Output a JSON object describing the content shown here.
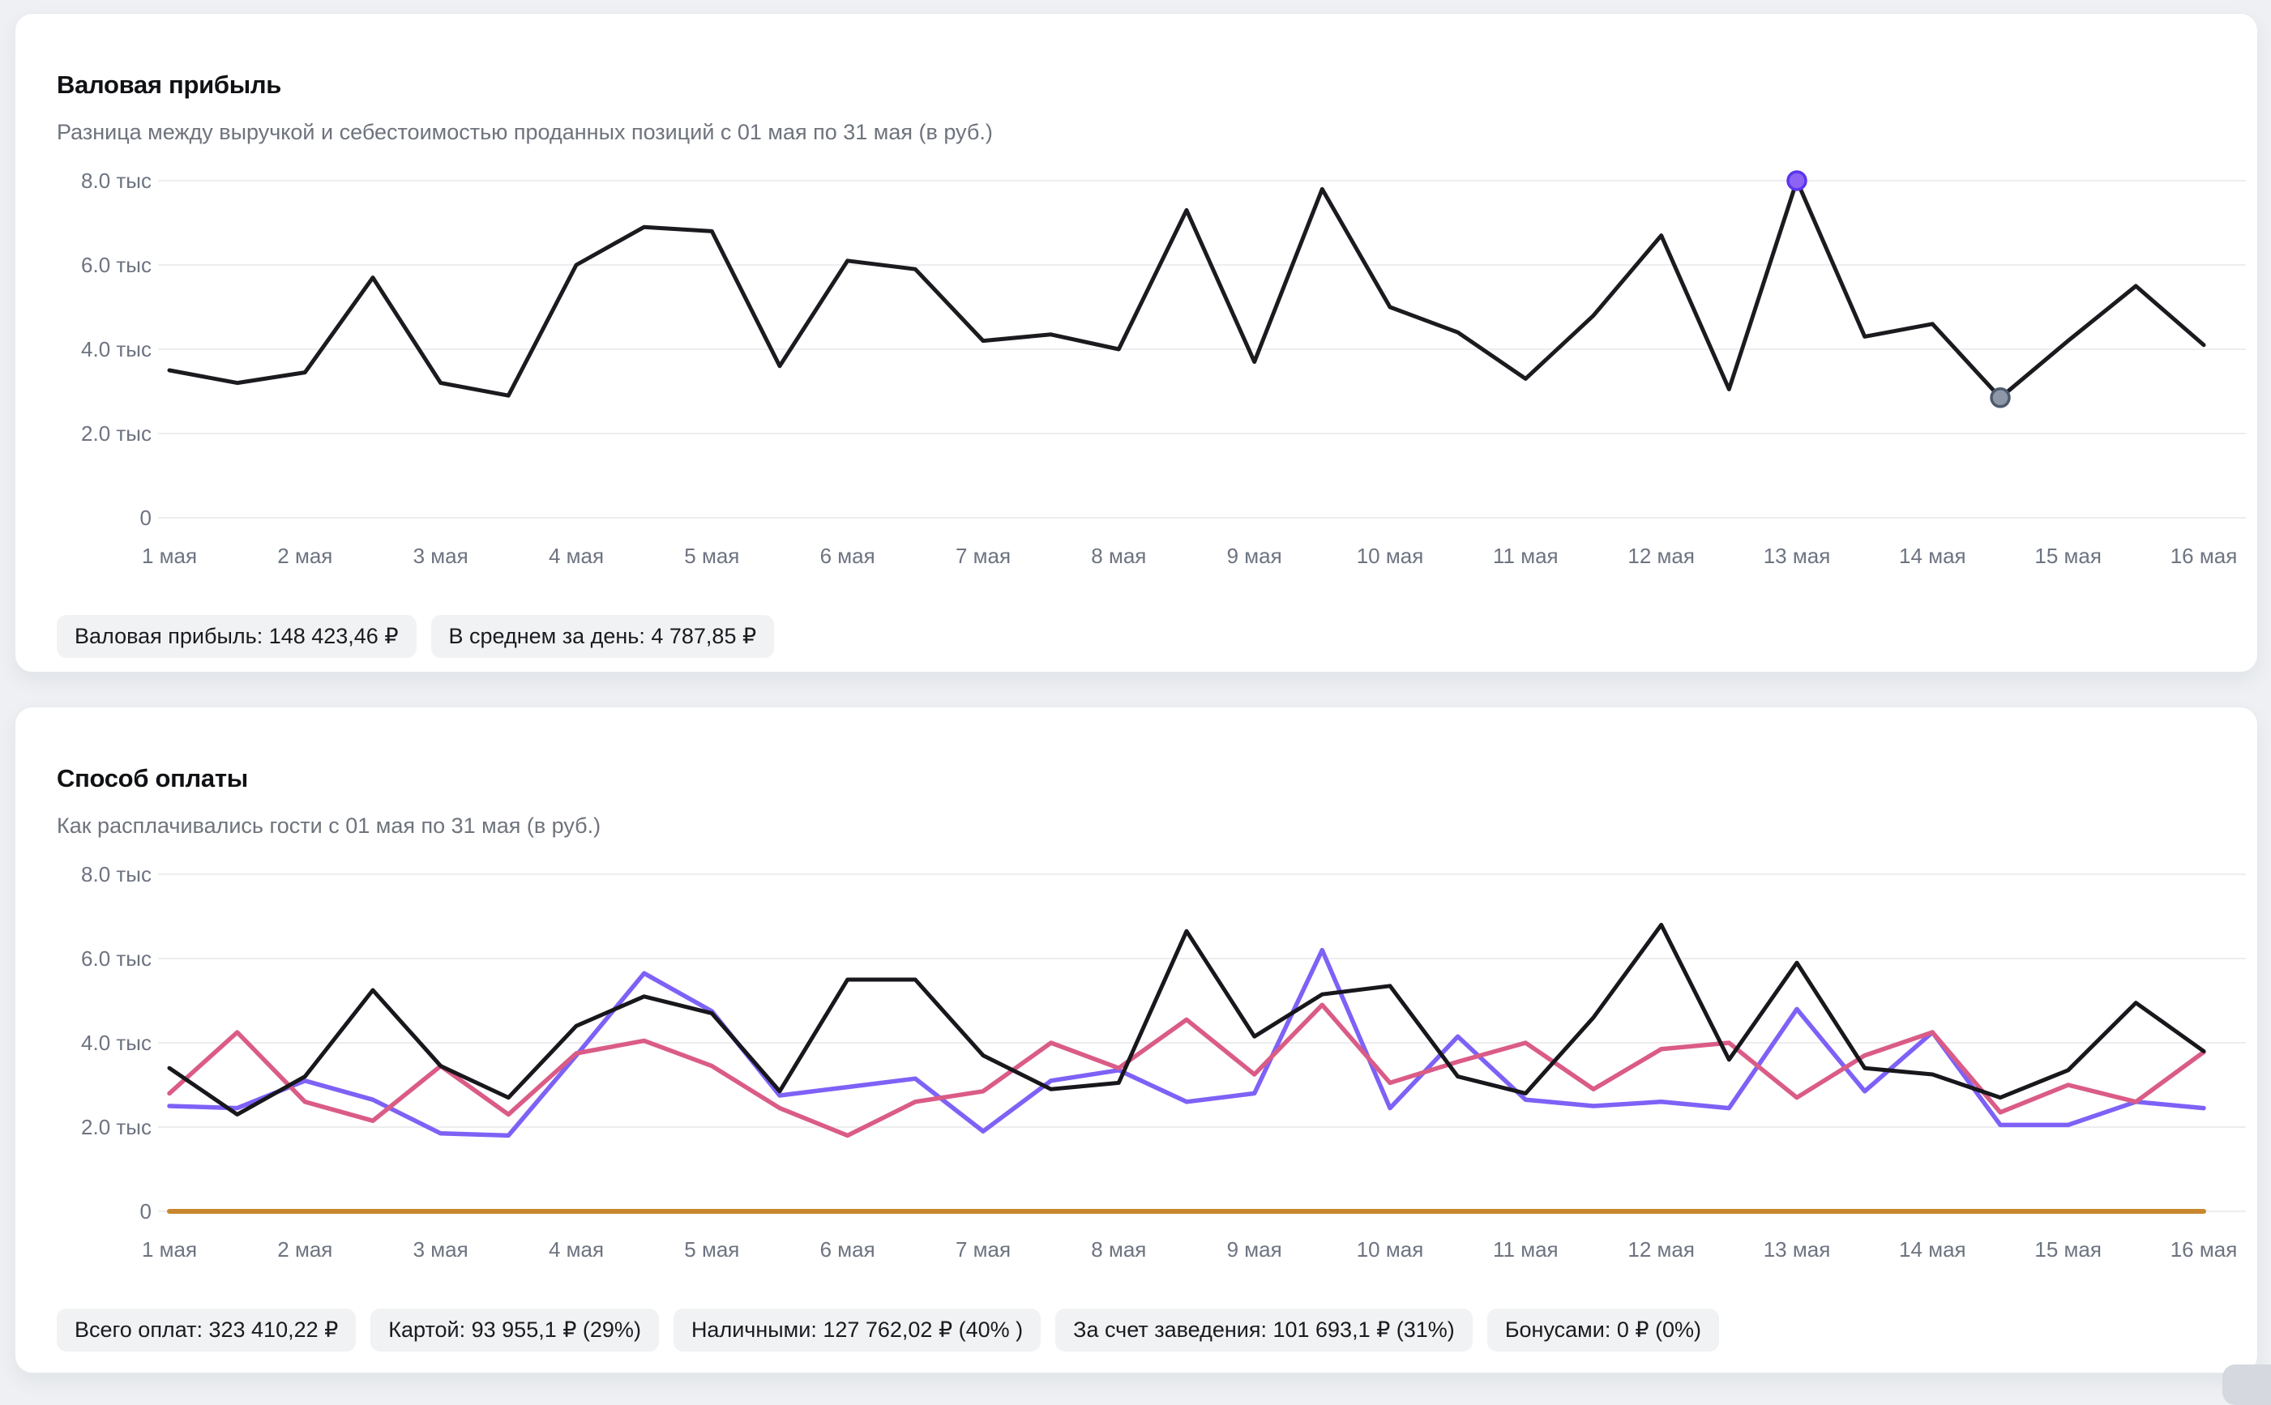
{
  "cards": [
    {
      "title": "Валовая прибыль",
      "subtitle": "Разница между выручкой и себестоимостью проданных позиций с 01 мая по 31 мая (в руб.)",
      "badges": [
        "Валовая прибыль: 148 423,46 ₽",
        "В среднем за день: 4 787,85 ₽"
      ]
    },
    {
      "title": "Способ оплаты",
      "subtitle": "Как расплачивались гости с 01 мая по 31 мая (в руб.)",
      "badges": [
        "Всего оплат: 323 410,22 ₽",
        "Картой: 93 955,1 ₽ (29%)",
        "Наличными: 127 762,02 ₽ (40% )",
        "За счет заведения: 101 693,1 ₽ (31%)",
        "Бонусами: 0 ₽ (0%)"
      ]
    }
  ],
  "chart_data": [
    {
      "type": "line",
      "title": "Валовая прибыль",
      "unit": "тыс",
      "ylim": [
        0,
        8
      ],
      "grid": true,
      "y_ticks": [
        "8.0 тыс",
        "6.0 тыс",
        "4.0 тыс",
        "2.0 тыс",
        "0"
      ],
      "y_tick_values": [
        8,
        6,
        4,
        2,
        0
      ],
      "x_labels": [
        "1 мая",
        "2 мая",
        "3 мая",
        "4 мая",
        "5 мая",
        "6 мая",
        "7 мая",
        "8 мая",
        "9 мая",
        "10 мая",
        "11 мая",
        "12 мая",
        "13 мая",
        "14 мая",
        "15 мая",
        "16 мая"
      ],
      "series": [
        {
          "name": "Валовая прибыль",
          "color": "#1b1b1f",
          "width": 5,
          "values": [
            3.5,
            3.2,
            3.45,
            5.7,
            3.2,
            2.9,
            6.0,
            6.9,
            6.8,
            3.6,
            6.1,
            5.9,
            4.2,
            4.35,
            4.0,
            7.3,
            3.7,
            7.8,
            5.0,
            4.4,
            3.3,
            4.8,
            6.7,
            3.05,
            8.0,
            4.3,
            4.6,
            2.85,
            4.2,
            5.5,
            4.1
          ]
        }
      ],
      "markers": [
        {
          "index": 24,
          "fill": "#8c63f3",
          "ring": "#5c35ee",
          "meaning": "max-point"
        },
        {
          "index": 27,
          "fill": "#8d97a8",
          "ring": "#4e5a6e",
          "meaning": "min-point"
        }
      ]
    },
    {
      "type": "line",
      "title": "Способ оплаты",
      "unit": "тыс",
      "ylim": [
        0,
        8
      ],
      "grid": true,
      "y_ticks": [
        "8.0 тыс",
        "6.0 тыс",
        "4.0 тыс",
        "2.0 тыс",
        "0"
      ],
      "y_tick_values": [
        8,
        6,
        4,
        2,
        0
      ],
      "x_labels": [
        "1 мая",
        "2 мая",
        "3 мая",
        "4 мая",
        "5 мая",
        "6 мая",
        "7 мая",
        "8 мая",
        "9 мая",
        "10 мая",
        "11 мая",
        "12 мая",
        "13 мая",
        "14 мая",
        "15 мая",
        "16 мая"
      ],
      "series": [
        {
          "name": "Бонусами",
          "color": "#c8872e",
          "width": 6,
          "values": [
            0,
            0,
            0,
            0,
            0,
            0,
            0,
            0,
            0,
            0,
            0,
            0,
            0,
            0,
            0,
            0,
            0,
            0,
            0,
            0,
            0,
            0,
            0,
            0,
            0,
            0,
            0,
            0,
            0,
            0,
            0
          ]
        },
        {
          "name": "Картой",
          "color": "#7e61f6",
          "width": 5.5,
          "values": [
            2.5,
            2.45,
            3.1,
            2.65,
            1.85,
            1.8,
            3.7,
            5.65,
            4.75,
            2.75,
            2.95,
            3.15,
            1.9,
            3.1,
            3.35,
            2.6,
            2.8,
            6.2,
            2.45,
            4.15,
            2.65,
            2.5,
            2.6,
            2.45,
            4.8,
            2.85,
            4.25,
            2.05,
            2.05,
            2.6,
            2.45
          ]
        },
        {
          "name": "За счет заведения",
          "color": "#da5c86",
          "width": 5.5,
          "values": [
            2.8,
            4.25,
            2.6,
            2.15,
            3.45,
            2.3,
            3.75,
            4.05,
            3.45,
            2.45,
            1.8,
            2.6,
            2.85,
            4.0,
            3.4,
            4.55,
            3.25,
            4.9,
            3.05,
            3.55,
            4.0,
            2.9,
            3.85,
            4.0,
            2.7,
            3.7,
            4.25,
            2.35,
            3.0,
            2.6,
            3.78
          ]
        },
        {
          "name": "Наличными",
          "color": "#17171c",
          "width": 5,
          "values": [
            3.4,
            2.3,
            3.2,
            5.25,
            3.45,
            2.7,
            4.4,
            5.1,
            4.7,
            2.85,
            5.5,
            5.5,
            3.7,
            2.9,
            3.05,
            6.65,
            4.15,
            5.15,
            5.35,
            3.2,
            2.8,
            4.6,
            6.8,
            3.6,
            5.9,
            3.4,
            3.25,
            2.7,
            3.35,
            4.95,
            3.8
          ]
        }
      ],
      "markers": []
    }
  ]
}
